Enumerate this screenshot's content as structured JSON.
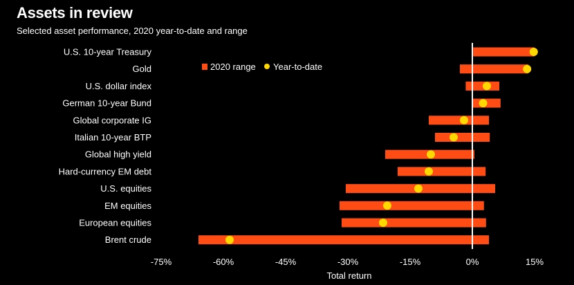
{
  "header": {
    "title": "Assets in review",
    "subtitle": "Selected asset performance, 2020 year-to-date and range"
  },
  "colors": {
    "background": "#000000",
    "range_bar": "#ff4c14",
    "ytd_dot": "#ffd800",
    "zero_line": "#ffffff",
    "text": "#ffffff"
  },
  "chart_data": {
    "type": "bar",
    "orientation": "horizontal",
    "title": "Assets in review",
    "subtitle": "Selected asset performance, 2020 year-to-date and range",
    "xlabel": "Total return",
    "ylabel": "",
    "xlim": [
      -75,
      15
    ],
    "xticks": [
      -75,
      -60,
      -45,
      -30,
      -15,
      0,
      15
    ],
    "xtick_labels": [
      "-75%",
      "-60%",
      "-45%",
      "-30%",
      "-15%",
      "0%",
      "15%"
    ],
    "grid": false,
    "legend_position": "top-right",
    "legend": [
      {
        "name": "2020 range",
        "marker": "square"
      },
      {
        "name": "Year-to-date",
        "marker": "dot"
      }
    ],
    "categories": [
      "U.S. 10-year Treasury",
      "Gold",
      "U.S. dollar index",
      "German 10-year Bund",
      "Global corporate IG",
      "Italian 10-year BTP",
      "Global high yield",
      "Hard-currency EM debt",
      "U.S. equities",
      "EM equities",
      "European equities",
      "Brent crude"
    ],
    "series": [
      {
        "name": "2020 range",
        "low": [
          0.2,
          -3.0,
          -1.6,
          0.0,
          -10.5,
          -9.0,
          -21.0,
          -18.0,
          -30.5,
          -32.0,
          -31.5,
          -66.0
        ],
        "high": [
          15.0,
          13.5,
          6.5,
          6.8,
          4.0,
          4.2,
          0.5,
          3.2,
          5.5,
          2.8,
          3.3,
          4.0
        ]
      },
      {
        "name": "Year-to-date",
        "values": [
          14.8,
          13.2,
          3.5,
          2.6,
          -2.0,
          -4.5,
          -10.0,
          -10.5,
          -13.0,
          -20.5,
          -21.5,
          -58.5
        ]
      }
    ]
  }
}
